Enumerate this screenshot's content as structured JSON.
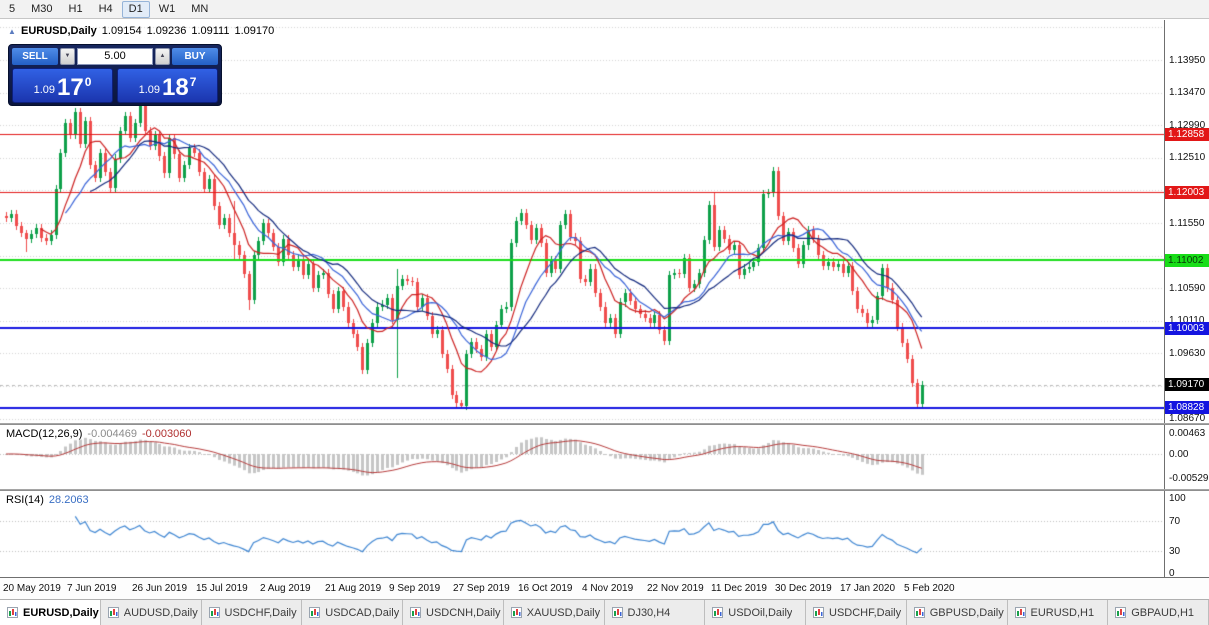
{
  "toolbar": {
    "timeframes": [
      "5",
      "M30",
      "H1",
      "H4",
      "D1",
      "W1",
      "MN"
    ],
    "active_timeframe": "D1"
  },
  "icons": {
    "collapse": "▲",
    "spin_up": "▲",
    "spin_down": "▼",
    "tab_chart": "mini-candlestick"
  },
  "chart": {
    "header": {
      "title": "EURUSD,Daily",
      "open": "1.09154",
      "high": "1.09236",
      "low": "1.09111",
      "close": "1.09170"
    },
    "one_click": {
      "sell_label": "SELL",
      "buy_label": "BUY",
      "volume": "5.00",
      "bid": {
        "small": "1.09",
        "big": "17",
        "sup": "0"
      },
      "ask": {
        "small": "1.09",
        "big": "18",
        "sup": "7"
      }
    },
    "price_axis": {
      "plain": [
        "1.13950",
        "1.13470",
        "1.12990",
        "1.12510",
        "1.11550",
        "1.10590",
        "1.10110",
        "1.09630",
        "1.08670"
      ],
      "boxes": [
        {
          "text": "1.12858",
          "bg": "#e21717",
          "fg": "#ffffff"
        },
        {
          "text": "1.12003",
          "bg": "#e21717",
          "fg": "#ffffff"
        },
        {
          "text": "1.11002",
          "bg": "#18dd18",
          "fg": "#063806"
        },
        {
          "text": "1.10003",
          "bg": "#1414e0",
          "fg": "#ffffff"
        },
        {
          "text": "1.09170",
          "bg": "#000000",
          "fg": "#ffffff"
        },
        {
          "text": "1.08828",
          "bg": "#1414e0",
          "fg": "#ffffff"
        }
      ]
    },
    "date_axis": [
      "20 May 2019",
      "7 Jun 2019",
      "26 Jun 2019",
      "15 Jul 2019",
      "2 Aug 2019",
      "21 Aug 2019",
      "9 Sep 2019",
      "27 Sep 2019",
      "16 Oct 2019",
      "4 Nov 2019",
      "22 Nov 2019",
      "11 Dec 2019",
      "30 Dec 2019",
      "17 Jan 2020",
      "5 Feb 2020"
    ]
  },
  "macd": {
    "label": "MACD(12,26,9)",
    "value1": "-0.004469",
    "value2": "-0.003060",
    "axis": [
      "0.00463",
      "0.00",
      "-0.005299"
    ]
  },
  "rsi": {
    "label": "RSI(14)",
    "value": "28.2063",
    "axis": [
      "100",
      "70",
      "30",
      "0"
    ]
  },
  "tabs": [
    {
      "label": "EURUSD,Daily",
      "active": true
    },
    {
      "label": "AUDUSD,Daily",
      "active": false
    },
    {
      "label": "USDCHF,Daily",
      "active": false
    },
    {
      "label": "USDCAD,Daily",
      "active": false
    },
    {
      "label": "USDCNH,Daily",
      "active": false
    },
    {
      "label": "XAUUSD,Daily",
      "active": false
    },
    {
      "label": "DJ30,H4",
      "active": false
    },
    {
      "label": "USDOil,Daily",
      "active": false
    },
    {
      "label": "USDCHF,Daily",
      "active": false
    },
    {
      "label": "GBPUSD,Daily",
      "active": false
    },
    {
      "label": "EURUSD,H1",
      "active": false
    },
    {
      "label": "GBPAUD,H1",
      "active": false
    }
  ],
  "chart_data": {
    "type": "candlestick",
    "symbol": "EURUSD",
    "timeframe": "Daily",
    "ohlc_last": {
      "open": 1.09154,
      "high": 1.09236,
      "low": 1.09111,
      "close": 1.0917
    },
    "bid": 1.0917,
    "ask": 1.09187,
    "ylim": [
      1.0862,
      1.1451
    ],
    "grid_step": 0.0048,
    "grid_base": 1.0867,
    "first_open": 1.1165,
    "closes": [
      1.1163,
      1.1168,
      1.1151,
      1.114,
      1.1131,
      1.1139,
      1.1148,
      1.1133,
      1.1128,
      1.1138,
      1.1205,
      1.1258,
      1.1302,
      1.1285,
      1.1318,
      1.1272,
      1.1305,
      1.124,
      1.1222,
      1.1258,
      1.123,
      1.1207,
      1.125,
      1.129,
      1.1312,
      1.128,
      1.1302,
      1.1335,
      1.129,
      1.1268,
      1.1285,
      1.1253,
      1.1228,
      1.128,
      1.1256,
      1.1222,
      1.124,
      1.1265,
      1.1258,
      1.123,
      1.1205,
      1.122,
      1.118,
      1.1152,
      1.1163,
      1.114,
      1.1122,
      1.1108,
      1.108,
      1.1042,
      1.1108,
      1.1128,
      1.1155,
      1.114,
      1.112,
      1.1098,
      1.1132,
      1.1108,
      1.109,
      1.1102,
      1.1078,
      1.1095,
      1.106,
      1.1078,
      1.1082,
      1.105,
      1.1028,
      1.1055,
      1.1032,
      1.1008,
      1.0992,
      1.0972,
      1.0938,
      1.0978,
      1.1008,
      1.1032,
      1.1035,
      1.1045,
      1.1012,
      1.1062,
      1.1073,
      1.107,
      1.1068,
      1.1032,
      1.1045,
      1.1018,
      1.0992,
      1.0998,
      1.0962,
      1.094,
      1.0902,
      1.089,
      1.0885,
      1.0962,
      1.098,
      1.097,
      1.0958,
      1.0992,
      1.0972,
      1.1005,
      1.1028,
      1.1032,
      1.1125,
      1.1158,
      1.117,
      1.1152,
      1.113,
      1.1148,
      1.1126,
      1.1082,
      1.11,
      1.1088,
      1.1152,
      1.1168,
      1.1135,
      1.1128,
      1.1072,
      1.1068,
      1.1088,
      1.1052,
      1.1032,
      1.1008,
      1.1015,
      1.0992,
      1.1038,
      1.1052,
      1.104,
      1.1028,
      1.1021,
      1.1015,
      1.1008,
      1.102,
      1.0998,
      1.0981,
      1.1078,
      1.1082,
      1.108,
      1.1103,
      1.106,
      1.1065,
      1.1082,
      1.113,
      1.1181,
      1.112,
      1.1145,
      1.1132,
      1.1115,
      1.1122,
      1.1078,
      1.1088,
      1.109,
      1.1098,
      1.1118,
      1.1198,
      1.1199,
      1.1232,
      1.1165,
      1.1128,
      1.1142,
      1.1118,
      1.1095,
      1.1122,
      1.1145,
      1.1132,
      1.1108,
      1.1092,
      1.1098,
      1.109,
      1.1095,
      1.1082,
      1.1092,
      1.1055,
      1.1028,
      1.1022,
      1.1008,
      1.1012,
      1.1048,
      1.1089,
      1.106,
      1.1042,
      1.1002,
      1.0978,
      1.0955,
      1.092,
      1.0888,
      1.0917
    ],
    "default_wick": 0.0006,
    "special_wicks": {
      "4": {
        "high": 0.0005,
        "low": 0.0019
      },
      "46": {
        "high": 0.0048,
        "low": 0.002
      },
      "49": {
        "high": 0.0005,
        "low": 0.0015
      },
      "79": {
        "high": 0.0025,
        "low": 0.0085
      },
      "92": {
        "high": 0.0005,
        "low": 0.0004
      },
      "143": {
        "high": 0.0018,
        "low": 0.0006
      }
    },
    "levels": [
      {
        "price": 1.12858,
        "color": "#e21717",
        "width": 1
      },
      {
        "price": 1.12003,
        "color": "#e21717",
        "width": 1
      },
      {
        "price": 1.11002,
        "color": "#18dd18",
        "width": 2
      },
      {
        "price": 1.10003,
        "color": "#1414e0",
        "width": 2
      },
      {
        "price": 1.08828,
        "color": "#1414e0",
        "width": 2
      }
    ],
    "current_price": 1.0917,
    "candle_up_color": "#0ea04a",
    "candle_down_color": "#ef4d4d",
    "moving_averages": [
      {
        "period": 8,
        "color": "#cc2222"
      },
      {
        "period": 13,
        "color": "#3a64d8"
      },
      {
        "period": 18,
        "color": "#142a7e"
      }
    ],
    "macd_settings": {
      "fast": 12,
      "slow": 26,
      "signal": 9,
      "hist_color": "#c6c6c6",
      "hist_edge": "#a9a9a9",
      "signal_color": "#b53a3a",
      "ymax": 0.00463,
      "ymin": -0.005299,
      "last_main": -0.004469,
      "last_signal": -0.00306
    },
    "rsi_settings": {
      "period": 14,
      "color": "#3f86d2",
      "levels": [
        70,
        30
      ],
      "last_value": 28.2063
    }
  }
}
